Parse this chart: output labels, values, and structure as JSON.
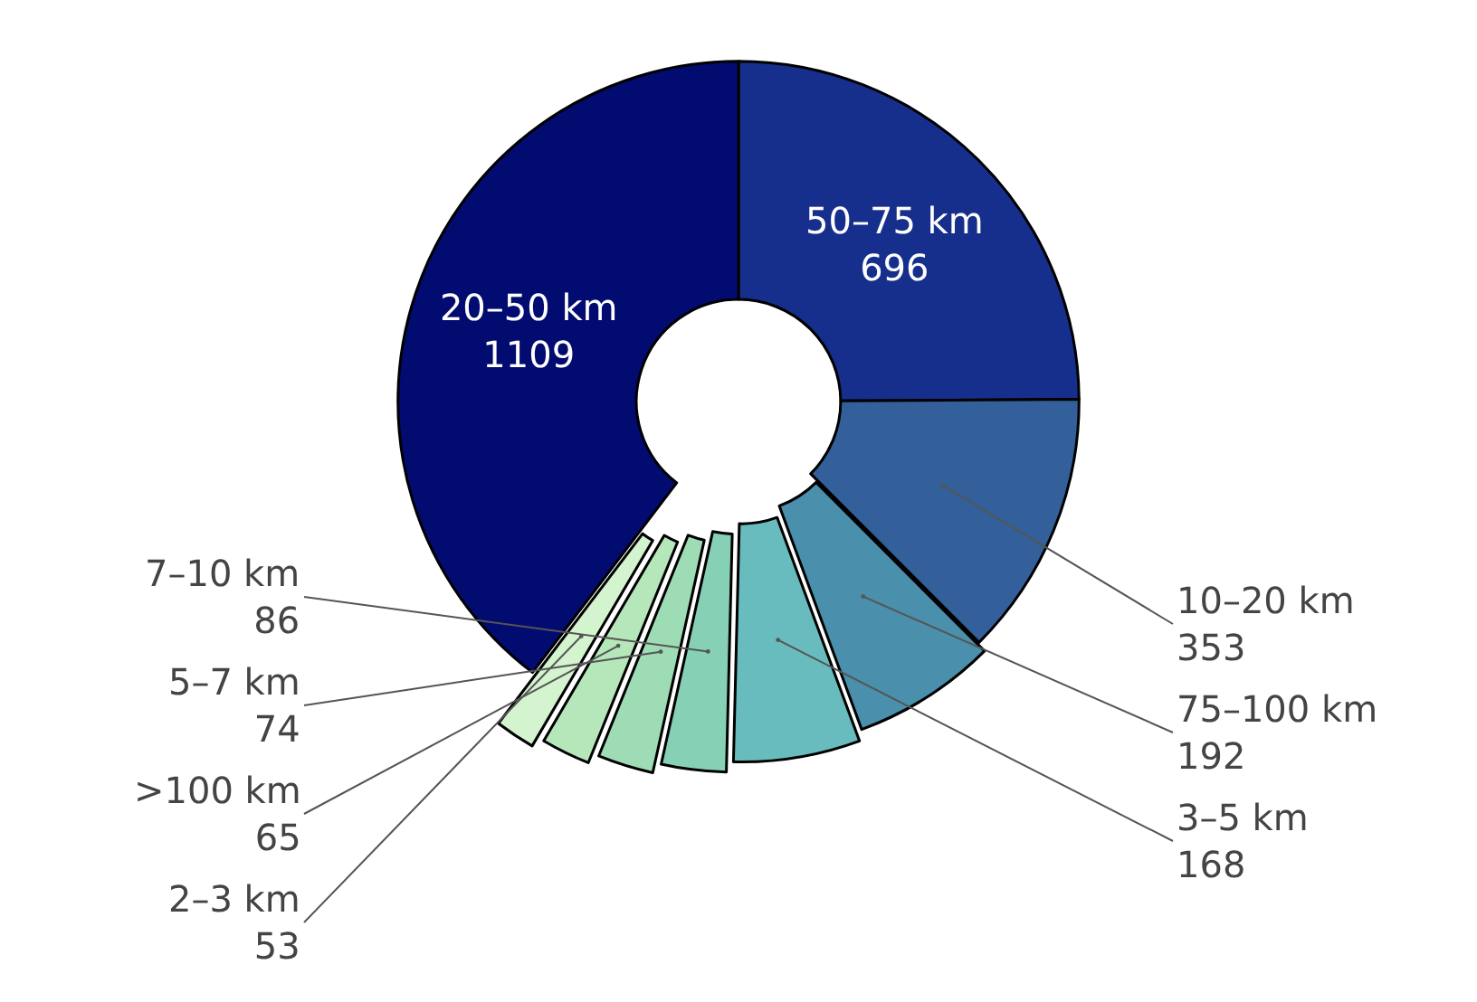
{
  "chart_data": {
    "type": "donut",
    "categories": [
      "50–75 km",
      "10–20 km",
      "75–100 km",
      "3–5 km",
      "7–10 km",
      "5–7 km",
      ">100 km",
      "2–3 km",
      "20–50 km"
    ],
    "values": [
      696,
      353,
      192,
      168,
      86,
      74,
      65,
      53,
      1109
    ],
    "colors": [
      "#172f8c",
      "#33609a",
      "#4a8fab",
      "#69bcbe",
      "#86d0b6",
      "#9edcb6",
      "#b6e7bb",
      "#d3f4cf",
      "#020b70"
    ],
    "data_labels": true,
    "legend": false
  }
}
